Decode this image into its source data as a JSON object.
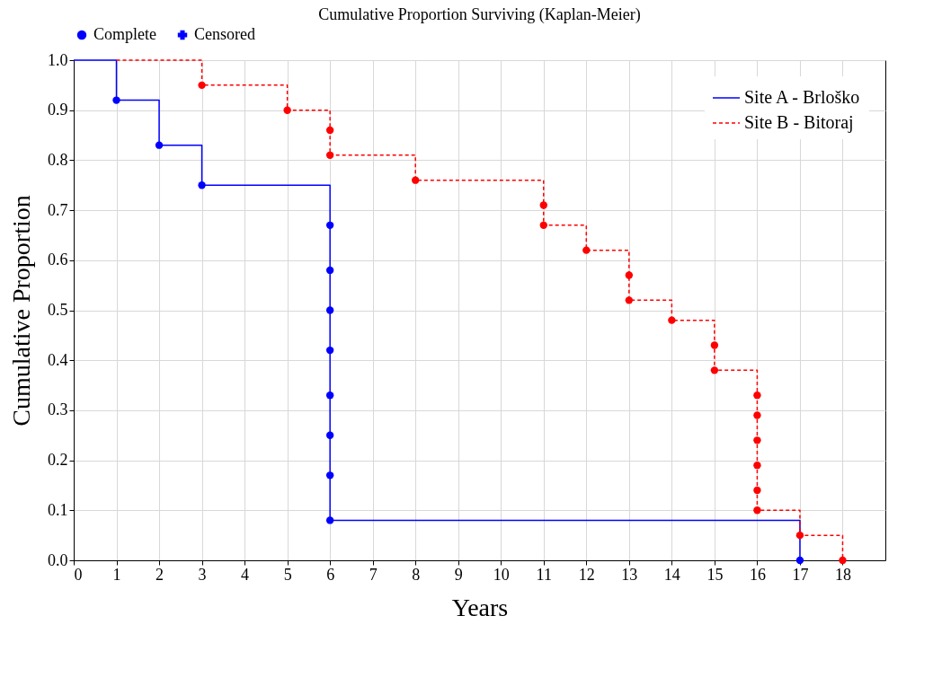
{
  "chart_data": {
    "type": "step",
    "title": "Cumulative Proportion Surviving (Kaplan-Meier)",
    "xlabel": "Years",
    "ylabel": "Cumulative Proportion",
    "xlim": [
      0,
      19
    ],
    "xticks": [
      0,
      1,
      2,
      3,
      4,
      5,
      6,
      7,
      8,
      9,
      10,
      11,
      12,
      13,
      14,
      15,
      16,
      17,
      18
    ],
    "ylim": [
      0,
      1
    ],
    "yticks": [
      {
        "value": 0,
        "label": "0.0"
      },
      0.1,
      0.2,
      0.3,
      0.4,
      0.5,
      0.6,
      0.7,
      0.8,
      0.9,
      {
        "value": 1,
        "label": "1.0"
      }
    ],
    "grid": true,
    "legend": "top right",
    "series": [
      {
        "name": "Site A - Brloško",
        "color": "#0000ff",
        "line_style": "solid",
        "marker": "none",
        "x": [
          0,
          1,
          2,
          3,
          6,
          17
        ],
        "values": [
          1,
          0.92,
          0.83,
          0.75,
          0.08,
          0
        ]
      },
      {
        "name": "Site B - Bitoraj",
        "color": "#ff0000",
        "line_style": "dashed",
        "marker": "none",
        "x": [
          1,
          3,
          5,
          6,
          8,
          11,
          12,
          13,
          14,
          15,
          16,
          17,
          18
        ],
        "values": [
          1,
          0.95,
          0.9,
          0.81,
          0.76,
          0.67,
          0.62,
          0.52,
          0.48,
          0.38,
          0.1,
          0.05,
          0
        ]
      },
      {
        "name": "Complete",
        "type": "scatter",
        "color": "#0000ff",
        "marker": "circle",
        "x": [
          1,
          2,
          3,
          6,
          6,
          6,
          6,
          6,
          6,
          6,
          6,
          17,
          3,
          5,
          6,
          6,
          8,
          11,
          11,
          12,
          13,
          13,
          14,
          15,
          15,
          16,
          16,
          16,
          16,
          16,
          16,
          17,
          18
        ],
        "values": [
          0.92,
          0.83,
          0.75,
          0.67,
          0.58,
          0.5,
          0.42,
          0.33,
          0.25,
          0.17,
          0.08,
          0,
          0.95,
          0.9,
          0.86,
          0.81,
          0.76,
          0.71,
          0.67,
          0.62,
          0.57,
          0.52,
          0.48,
          0.43,
          0.38,
          0.33,
          0.29,
          0.24,
          0.19,
          0.14,
          0.1,
          0.05,
          0
        ],
        "colors": [
          "#0000ff",
          "#0000ff",
          "#0000ff",
          "#0000ff",
          "#0000ff",
          "#0000ff",
          "#0000ff",
          "#0000ff",
          "#0000ff",
          "#0000ff",
          "#0000ff",
          "#0000ff",
          "#ff0000",
          "#ff0000",
          "#ff0000",
          "#ff0000",
          "#ff0000",
          "#ff0000",
          "#ff0000",
          "#ff0000",
          "#ff0000",
          "#ff0000",
          "#ff0000",
          "#ff0000",
          "#ff0000",
          "#ff0000",
          "#ff0000",
          "#ff0000",
          "#ff0000",
          "#ff0000",
          "#ff0000",
          "#ff0000",
          "#ff0000"
        ]
      },
      {
        "name": "Censored",
        "type": "scatter",
        "color": "#0000ff",
        "marker": "cross"
      }
    ]
  }
}
